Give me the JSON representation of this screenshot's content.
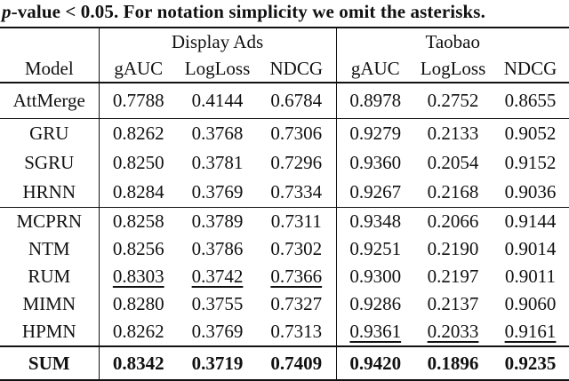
{
  "caption": {
    "p_italic": "p",
    "text": "-value < 0.05. For notation simplicity we omit the asterisks."
  },
  "colors": {
    "background": "#ffffff",
    "text": "#111111",
    "rule": "#111111"
  },
  "table": {
    "group_headers": {
      "display_ads": "Display Ads",
      "taobao": "Taobao"
    },
    "model_header": "Model",
    "metric_headers": [
      "gAUC",
      "LogLoss",
      "NDCG",
      "gAUC",
      "LogLoss",
      "NDCG"
    ],
    "rows": [
      {
        "model": "AttMerge",
        "v": [
          "0.7788",
          "0.4144",
          "0.6784",
          "0.8978",
          "0.2752",
          "0.8655"
        ]
      },
      {
        "model": "GRU",
        "v": [
          "0.8262",
          "0.3768",
          "0.7306",
          "0.9279",
          "0.2133",
          "0.9052"
        ]
      },
      {
        "model": "SGRU",
        "v": [
          "0.8250",
          "0.3781",
          "0.7296",
          "0.9360",
          "0.2054",
          "0.9152"
        ]
      },
      {
        "model": "HRNN",
        "v": [
          "0.8284",
          "0.3769",
          "0.7334",
          "0.9267",
          "0.2168",
          "0.9036"
        ]
      },
      {
        "model": "MCPRN",
        "v": [
          "0.8258",
          "0.3789",
          "0.7311",
          "0.9348",
          "0.2066",
          "0.9144"
        ]
      },
      {
        "model": "NTM",
        "v": [
          "0.8256",
          "0.3786",
          "0.7302",
          "0.9251",
          "0.2190",
          "0.9014"
        ]
      },
      {
        "model": "RUM",
        "v": [
          "0.8303",
          "0.3742",
          "0.7366",
          "0.9300",
          "0.2197",
          "0.9011"
        ]
      },
      {
        "model": "MIMN",
        "v": [
          "0.8280",
          "0.3755",
          "0.7327",
          "0.9286",
          "0.2137",
          "0.9060"
        ]
      },
      {
        "model": "HPMN",
        "v": [
          "0.8262",
          "0.3769",
          "0.7313",
          "0.9361",
          "0.2033",
          "0.9161"
        ]
      },
      {
        "model": "SUM",
        "v": [
          "0.8342",
          "0.3719",
          "0.7409",
          "0.9420",
          "0.1896",
          "0.9235"
        ]
      }
    ]
  }
}
